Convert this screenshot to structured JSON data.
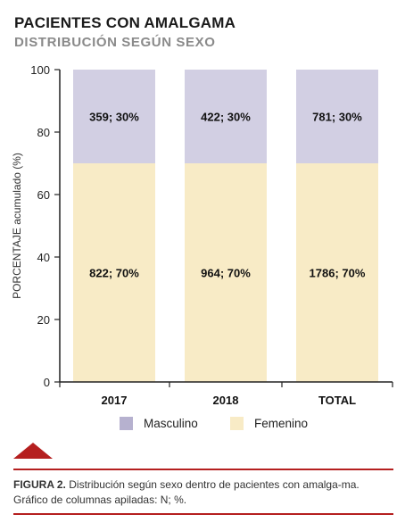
{
  "header": {
    "title": "PACIENTES CON AMALGAMA",
    "subtitle": "DISTRIBUCIÓN SEGÚN SEXO"
  },
  "chart_data": {
    "type": "bar",
    "stacked": true,
    "categories": [
      "2017",
      "2018",
      "TOTAL"
    ],
    "ylabel": "PORCENTAJE acumulado (%)",
    "xlabel": "",
    "ylim": [
      0,
      100
    ],
    "yticks": [
      "0",
      "20",
      "40",
      "60",
      "80",
      "100"
    ],
    "grid": false,
    "legend_position": "bottom",
    "series": [
      {
        "name": "Femenino",
        "color": "#f8ebc6",
        "values": [
          70,
          70,
          70
        ],
        "labels": [
          "822; 70%",
          "964; 70%",
          "1786; 70%"
        ]
      },
      {
        "name": "Masculino",
        "color": "#d2cfe3",
        "values": [
          30,
          30,
          30
        ],
        "labels": [
          "359; 30%",
          "422; 30%",
          "781; 30%"
        ]
      }
    ]
  },
  "legend": [
    {
      "name": "Masculino",
      "color": "#b6b1cf"
    },
    {
      "name": "Femenino",
      "color": "#f8ebc6"
    }
  ],
  "caption": {
    "figure_label": "FIGURA 2.",
    "text": " Distribución según sexo dentro de pacientes con amalga-ma. Gráfico de columnas apiladas: N; %."
  },
  "colors": {
    "accent": "#b51f1f",
    "axis": "#222222"
  }
}
